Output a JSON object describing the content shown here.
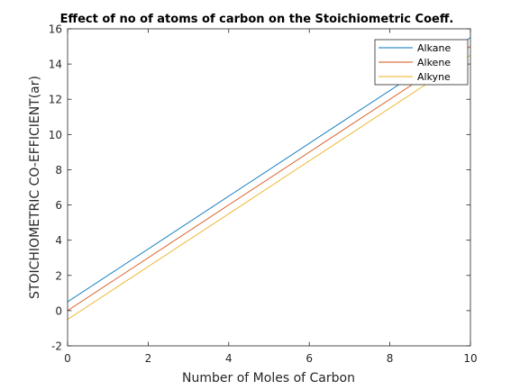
{
  "chart_data": {
    "type": "line",
    "title": "Effect of no of atoms of carbon on the Stoichiometric Coeff.",
    "xlabel": "Number of Moles of Carbon",
    "ylabel": "STOICHIOMETRIC CO-EFFICIENT(ar)",
    "xlim": [
      0,
      10
    ],
    "ylim": [
      -2,
      16
    ],
    "xticks": [
      0,
      2,
      4,
      6,
      8,
      10
    ],
    "yticks": [
      -2,
      0,
      2,
      4,
      6,
      8,
      10,
      12,
      14,
      16
    ],
    "grid": false,
    "legend_position": "top-right",
    "x": [
      0,
      1,
      2,
      3,
      4,
      5,
      6,
      7,
      8,
      9,
      10
    ],
    "series": [
      {
        "name": "Alkane",
        "color": "#0072BD",
        "values": [
          0.5,
          2.0,
          3.5,
          5.0,
          6.5,
          8.0,
          9.5,
          11.0,
          12.5,
          14.0,
          15.5
        ]
      },
      {
        "name": "Alkene",
        "color": "#D95319",
        "values": [
          0.0,
          1.5,
          3.0,
          4.5,
          6.0,
          7.5,
          9.0,
          10.5,
          12.0,
          13.5,
          15.0
        ]
      },
      {
        "name": "Alkyne",
        "color": "#EDB120",
        "values": [
          -0.5,
          1.0,
          2.5,
          4.0,
          5.5,
          7.0,
          8.5,
          10.0,
          11.5,
          13.0,
          14.5
        ]
      }
    ]
  }
}
